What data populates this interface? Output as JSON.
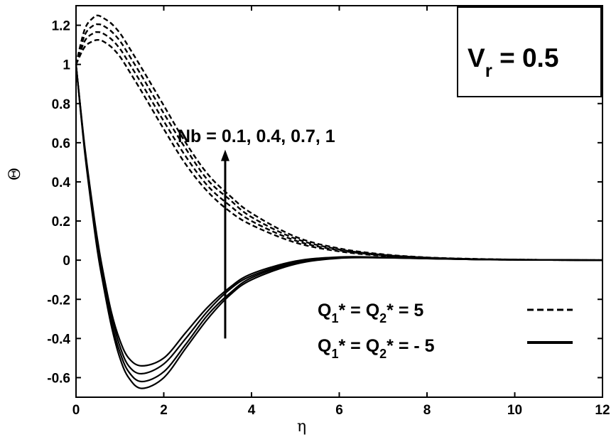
{
  "chart_data": {
    "type": "line",
    "title": "",
    "xlabel": "η",
    "ylabel": "Θ",
    "xlim": [
      0,
      12
    ],
    "ylim": [
      -0.7,
      1.3
    ],
    "xticks": [
      "0",
      "2",
      "4",
      "6",
      "8",
      "10",
      "12"
    ],
    "yticks": [
      "-0.6",
      "-0.4",
      "-0.2",
      "0",
      "0.2",
      "0.4",
      "0.6",
      "0.8",
      "1",
      "1.2"
    ],
    "parameter_box": {
      "var": "V",
      "sub": "r",
      "rest": " = 0.5"
    },
    "annotation": "Nb = 0.1, 0.4, 0.7, 1",
    "legend": {
      "position": "bottom-right",
      "dashed": {
        "q1": "Q",
        "s1": "1",
        "mid": "* = Q",
        "s2": "2",
        "end": "* = 5"
      },
      "solid": {
        "q1": "Q",
        "s1": "1",
        "mid": "* = Q",
        "s2": "2",
        "end": "* = - 5"
      }
    },
    "x": [
      0,
      0.2,
      0.4,
      0.5,
      0.6,
      0.8,
      1.0,
      1.2,
      1.5,
      2.0,
      2.5,
      3.0,
      3.5,
      4.0,
      5.0,
      6.0,
      7.0,
      8.0,
      9.0,
      10.0,
      11.0,
      12.0
    ],
    "series": [
      {
        "style": "dashed",
        "nb": "0.1",
        "values": [
          1.0,
          1.09,
          1.12,
          1.125,
          1.12,
          1.09,
          1.04,
          0.97,
          0.86,
          0.67,
          0.49,
          0.35,
          0.25,
          0.18,
          0.09,
          0.045,
          0.022,
          0.011,
          0.005,
          0.002,
          0.001,
          0.0
        ]
      },
      {
        "style": "dashed",
        "nb": "0.4",
        "values": [
          1.0,
          1.12,
          1.16,
          1.165,
          1.16,
          1.13,
          1.08,
          1.01,
          0.9,
          0.71,
          0.53,
          0.38,
          0.28,
          0.2,
          0.1,
          0.05,
          0.025,
          0.012,
          0.006,
          0.003,
          0.001,
          0.0
        ]
      },
      {
        "style": "dashed",
        "nb": "0.7",
        "values": [
          1.0,
          1.15,
          1.2,
          1.205,
          1.2,
          1.17,
          1.12,
          1.05,
          0.94,
          0.75,
          0.57,
          0.41,
          0.31,
          0.22,
          0.11,
          0.055,
          0.027,
          0.013,
          0.006,
          0.003,
          0.001,
          0.0
        ]
      },
      {
        "style": "dashed",
        "nb": "1",
        "values": [
          1.0,
          1.18,
          1.24,
          1.25,
          1.24,
          1.21,
          1.16,
          1.09,
          0.98,
          0.79,
          0.6,
          0.44,
          0.33,
          0.24,
          0.12,
          0.06,
          0.03,
          0.014,
          0.007,
          0.003,
          0.001,
          0.0
        ]
      },
      {
        "style": "solid",
        "nb": "0.1",
        "values": [
          1.0,
          0.55,
          0.19,
          0.03,
          -0.1,
          -0.33,
          -0.5,
          -0.6,
          -0.655,
          -0.6,
          -0.45,
          -0.3,
          -0.18,
          -0.1,
          -0.02,
          0.01,
          0.012,
          0.008,
          0.004,
          0.002,
          0.001,
          0.0
        ]
      },
      {
        "style": "solid",
        "nb": "0.4",
        "values": [
          1.0,
          0.56,
          0.2,
          0.05,
          -0.08,
          -0.31,
          -0.47,
          -0.57,
          -0.62,
          -0.57,
          -0.43,
          -0.28,
          -0.17,
          -0.09,
          -0.015,
          0.012,
          0.013,
          0.008,
          0.004,
          0.002,
          0.001,
          0.0
        ]
      },
      {
        "style": "solid",
        "nb": "0.7",
        "values": [
          1.0,
          0.57,
          0.22,
          0.07,
          -0.06,
          -0.28,
          -0.44,
          -0.54,
          -0.58,
          -0.53,
          -0.4,
          -0.26,
          -0.15,
          -0.08,
          -0.01,
          0.014,
          0.014,
          0.009,
          0.004,
          0.002,
          0.001,
          0.0
        ]
      },
      {
        "style": "solid",
        "nb": "1",
        "values": [
          1.0,
          0.58,
          0.24,
          0.09,
          -0.04,
          -0.26,
          -0.41,
          -0.5,
          -0.54,
          -0.5,
          -0.37,
          -0.24,
          -0.14,
          -0.07,
          -0.005,
          0.016,
          0.015,
          0.009,
          0.004,
          0.002,
          0.001,
          0.0
        ]
      }
    ],
    "arrow": {
      "x": 3.4,
      "from_y": -0.4,
      "to_y": 0.55,
      "direction": "up"
    }
  }
}
